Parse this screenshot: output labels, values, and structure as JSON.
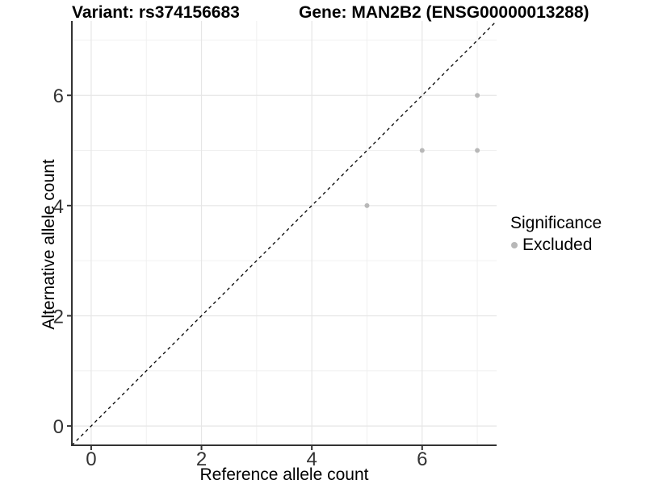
{
  "chart_data": {
    "type": "scatter",
    "title_left": "Variant: rs374156683",
    "title_right": "Gene: MAN2B2 (ENSG00000013288)",
    "xlabel": "Reference allele count",
    "ylabel": "Alternative allele count",
    "xlim": [
      -0.35,
      7.35
    ],
    "ylim": [
      -0.35,
      7.35
    ],
    "xticks": [
      0,
      2,
      4,
      6
    ],
    "yticks": [
      0,
      2,
      4,
      6
    ],
    "xticks_minor": [
      1,
      3,
      5,
      7
    ],
    "yticks_minor": [
      1,
      3,
      5,
      7
    ],
    "grid": "major and minor gridlines, light gray on white panel",
    "identity_line": {
      "style": "dashed",
      "from": [
        -0.35,
        -0.35
      ],
      "to": [
        7.35,
        7.35
      ]
    },
    "series": [
      {
        "name": "Excluded",
        "color": "#b8b8b8",
        "points": [
          [
            5,
            4
          ],
          [
            6,
            5
          ],
          [
            7,
            5
          ],
          [
            7,
            6
          ]
        ]
      }
    ],
    "legend": {
      "title": "Significance",
      "position": "right",
      "items": [
        {
          "label": "Excluded",
          "color": "#b8b8b8"
        }
      ]
    },
    "colors": {
      "grid_major": "#e6e6e6",
      "grid_minor": "#f0f0f0",
      "axis_line": "#333333",
      "tick_text": "#333333",
      "identity_line": "#000000",
      "title_text": "#000000"
    }
  }
}
